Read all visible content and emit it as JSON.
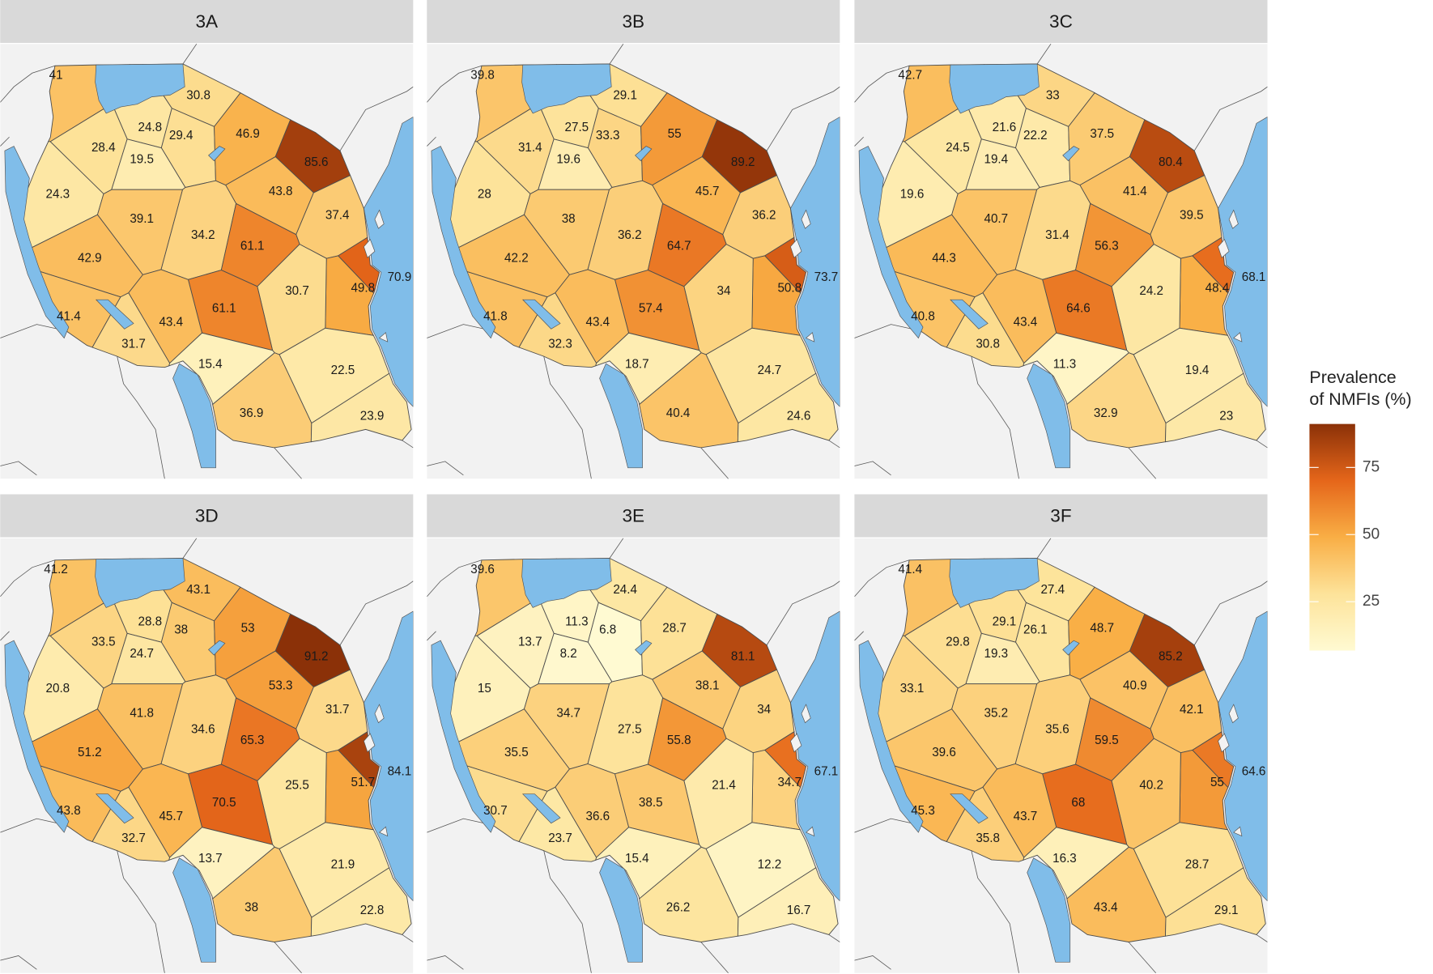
{
  "chart_data": [
    {
      "type": "choropleth",
      "title": "3A",
      "values": [
        41,
        30.8,
        24.8,
        29.4,
        28.4,
        19.5,
        46.9,
        85.6,
        24.3,
        43.8,
        39.1,
        37.4,
        34.2,
        61.1,
        42.9,
        70.9,
        49.8,
        30.7,
        61.1,
        41.4,
        43.4,
        31.7,
        15.4,
        22.5,
        36.9,
        23.9
      ]
    },
    {
      "type": "choropleth",
      "title": "3B",
      "values": [
        39.8,
        29.1,
        27.5,
        33.3,
        31.4,
        19.6,
        55,
        89.2,
        28,
        45.7,
        38,
        36.2,
        36.2,
        64.7,
        42.2,
        73.7,
        50.8,
        34,
        57.4,
        41.8,
        43.4,
        32.3,
        18.7,
        24.7,
        40.4,
        24.6
      ]
    },
    {
      "type": "choropleth",
      "title": "3C",
      "values": [
        42.7,
        33,
        21.6,
        22.2,
        24.5,
        19.4,
        37.5,
        80.4,
        19.6,
        41.4,
        40.7,
        39.5,
        31.4,
        56.3,
        44.3,
        68.1,
        48.4,
        24.2,
        64.6,
        40.8,
        43.4,
        30.8,
        11.3,
        19.4,
        32.9,
        23
      ]
    },
    {
      "type": "choropleth",
      "title": "3D",
      "values": [
        41.2,
        43.1,
        28.8,
        38,
        33.5,
        24.7,
        53,
        91.2,
        20.8,
        53.3,
        41.8,
        31.7,
        34.6,
        65.3,
        51.2,
        84.1,
        51.7,
        25.5,
        70.5,
        43.8,
        45.7,
        32.7,
        13.7,
        21.9,
        38,
        22.8
      ]
    },
    {
      "type": "choropleth",
      "title": "3E",
      "values": [
        39.6,
        24.4,
        11.3,
        6.8,
        13.7,
        8.2,
        28.7,
        81.1,
        15,
        38.1,
        34.7,
        34,
        27.5,
        55.8,
        35.5,
        67.1,
        34.7,
        21.4,
        38.5,
        30.7,
        36.6,
        23.7,
        15.4,
        12.2,
        26.2,
        16.7
      ]
    },
    {
      "type": "choropleth",
      "title": "3F",
      "values": [
        41.4,
        27.4,
        29.1,
        26.1,
        29.8,
        19.3,
        48.7,
        85.2,
        33.1,
        40.9,
        35.2,
        42.1,
        35.6,
        59.5,
        39.6,
        64.6,
        55,
        40.2,
        68,
        45.3,
        43.7,
        35.8,
        16.3,
        28.7,
        43.4,
        29.1
      ]
    }
  ],
  "legend": {
    "title": [
      "Prevalence",
      "of NMFIs (%)"
    ],
    "lim": [
      6.8,
      91.2
    ],
    "ticks": [
      25,
      50,
      75
    ],
    "colors": [
      "#fffad2",
      "#fde39a",
      "#f9ae45",
      "#e5661a",
      "#8b3108"
    ]
  }
}
